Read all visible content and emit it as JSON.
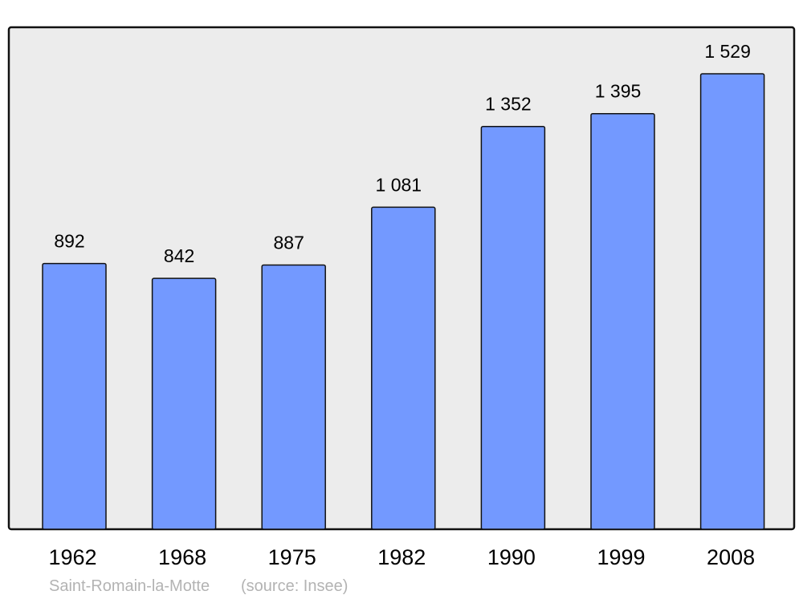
{
  "chart_data": {
    "type": "bar",
    "categories": [
      "1962",
      "1968",
      "1975",
      "1982",
      "1990",
      "1999",
      "2008"
    ],
    "values": [
      892,
      842,
      887,
      1081,
      1352,
      1395,
      1529
    ],
    "value_labels": [
      "892",
      "842",
      "887",
      "1 081",
      "1 352",
      "1 395",
      "1 529"
    ],
    "title": "",
    "xlabel": "",
    "ylabel": "",
    "ylim": [
      0,
      1685
    ],
    "grid": false,
    "bar_color": "#7399ff",
    "background_color": "#ececec"
  },
  "footer": {
    "place": "Saint-Romain-la-Motte",
    "source": "(source: Insee)"
  }
}
